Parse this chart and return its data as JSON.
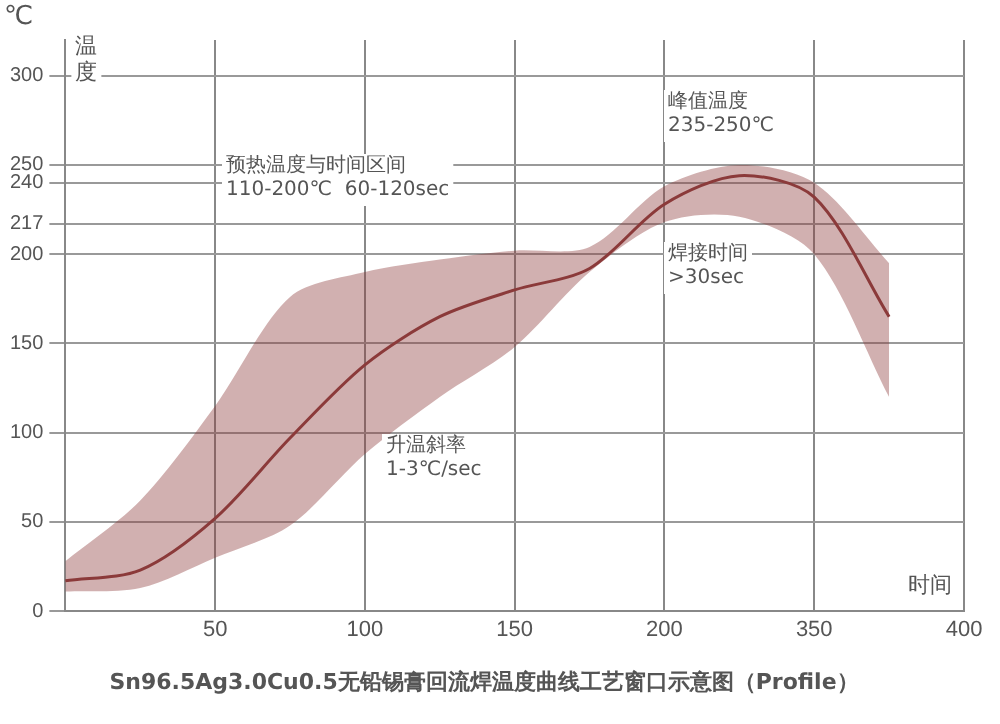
{
  "chart_data": {
    "type": "line",
    "title": "Sn96.5Ag3.0Cu0.5无铅锡膏回流焊温度曲线工艺窗口示意图（Profile）",
    "xlabel": "时间",
    "ylabel": "温度",
    "categories": [
      null,
      null,
      "50",
      null,
      "100",
      null,
      "150",
      null,
      "200",
      null,
      "350",
      null,
      "400"
    ],
    "series": [
      {
        "color": "#8b3a3a",
        "values": [
          17,
          23,
          52,
          97,
          138,
          165,
          180,
          192,
          228,
          244,
          232,
          165,
          null
        ],
        "lower": [
          11,
          13,
          30,
          48,
          88,
          120,
          148,
          190,
          218,
          221,
          200,
          120,
          null
        ],
        "upper": [
          28,
          62,
          115,
          176,
          190,
          197,
          202,
          204,
          238,
          250,
          240,
          195,
          null
        ]
      }
    ],
    "ylim": [
      0,
      320
    ],
    "yticks": [
      0,
      50,
      100,
      150,
      200,
      217,
      240,
      250,
      300
    ],
    "grid": true,
    "legend": false,
    "marker": "none",
    "annotations": [
      "℃",
      "预热温度与时间区间\n110-200℃  60-120sec",
      "峰值温度\n235-250℃",
      "焊接时间\n>30sec",
      "升温斜率\n1-3℃/sec"
    ]
  }
}
